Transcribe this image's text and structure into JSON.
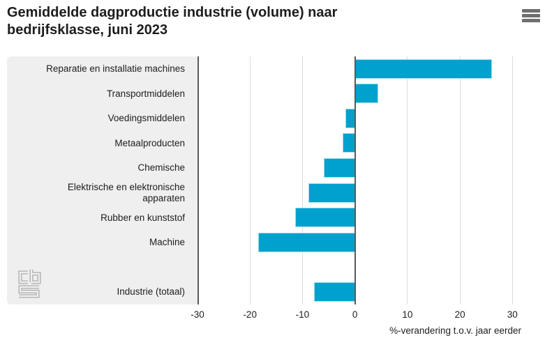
{
  "header": {
    "title_line1": "Gemiddelde dagproductie industrie (volume) naar",
    "title_line2": "bedrijfsklasse, juni 2023",
    "menu_icon": "hamburger-icon"
  },
  "branding": {
    "logo": "cbs-logo"
  },
  "colors": {
    "bar": "#00a1cd",
    "bar_border": "#a2dcee",
    "panel_bg": "#efefef",
    "gridline": "#dcdcdc",
    "axis_line": "#595959",
    "text": "#1d1d1d"
  },
  "chart_data": {
    "type": "bar",
    "orientation": "horizontal",
    "title": "Gemiddelde dagproductie industrie (volume) naar bedrijfsklasse, juni 2023",
    "xlabel": "%-verandering t.o.v. jaar eerder",
    "xlim": [
      -30,
      30
    ],
    "xticks": [
      -30,
      -20,
      -10,
      0,
      10,
      20,
      30
    ],
    "grid": true,
    "legend": "none",
    "categories": [
      "Reparatie en installatie machines",
      "Transportmiddelen",
      "Voedingsmiddelen",
      "Metaalproducten",
      "Chemische",
      "Elektrische en elektronische apparaten",
      "Rubber en kunststof",
      "Machine",
      "Industrie (totaal)"
    ],
    "values": [
      26.1,
      4.4,
      -1.8,
      -2.3,
      -5.9,
      -8.9,
      -11.4,
      -18.4,
      -7.8
    ],
    "rows": [
      {
        "label": "Reparatie en installatie machines",
        "value": 26.1
      },
      {
        "label": "Transportmiddelen",
        "value": 4.4
      },
      {
        "label": "Voedingsmiddelen",
        "value": -1.8
      },
      {
        "label": "Metaalproducten",
        "value": -2.3
      },
      {
        "label": "Chemische",
        "value": -5.9
      },
      {
        "label": "Elektrische en elektronische apparaten",
        "value": -8.9
      },
      {
        "label": "Rubber en kunststof",
        "value": -11.4
      },
      {
        "label": "Machine",
        "value": -18.4
      },
      {
        "label": "",
        "value": null
      },
      {
        "label": "Industrie (totaal)",
        "value": -7.8
      }
    ]
  }
}
